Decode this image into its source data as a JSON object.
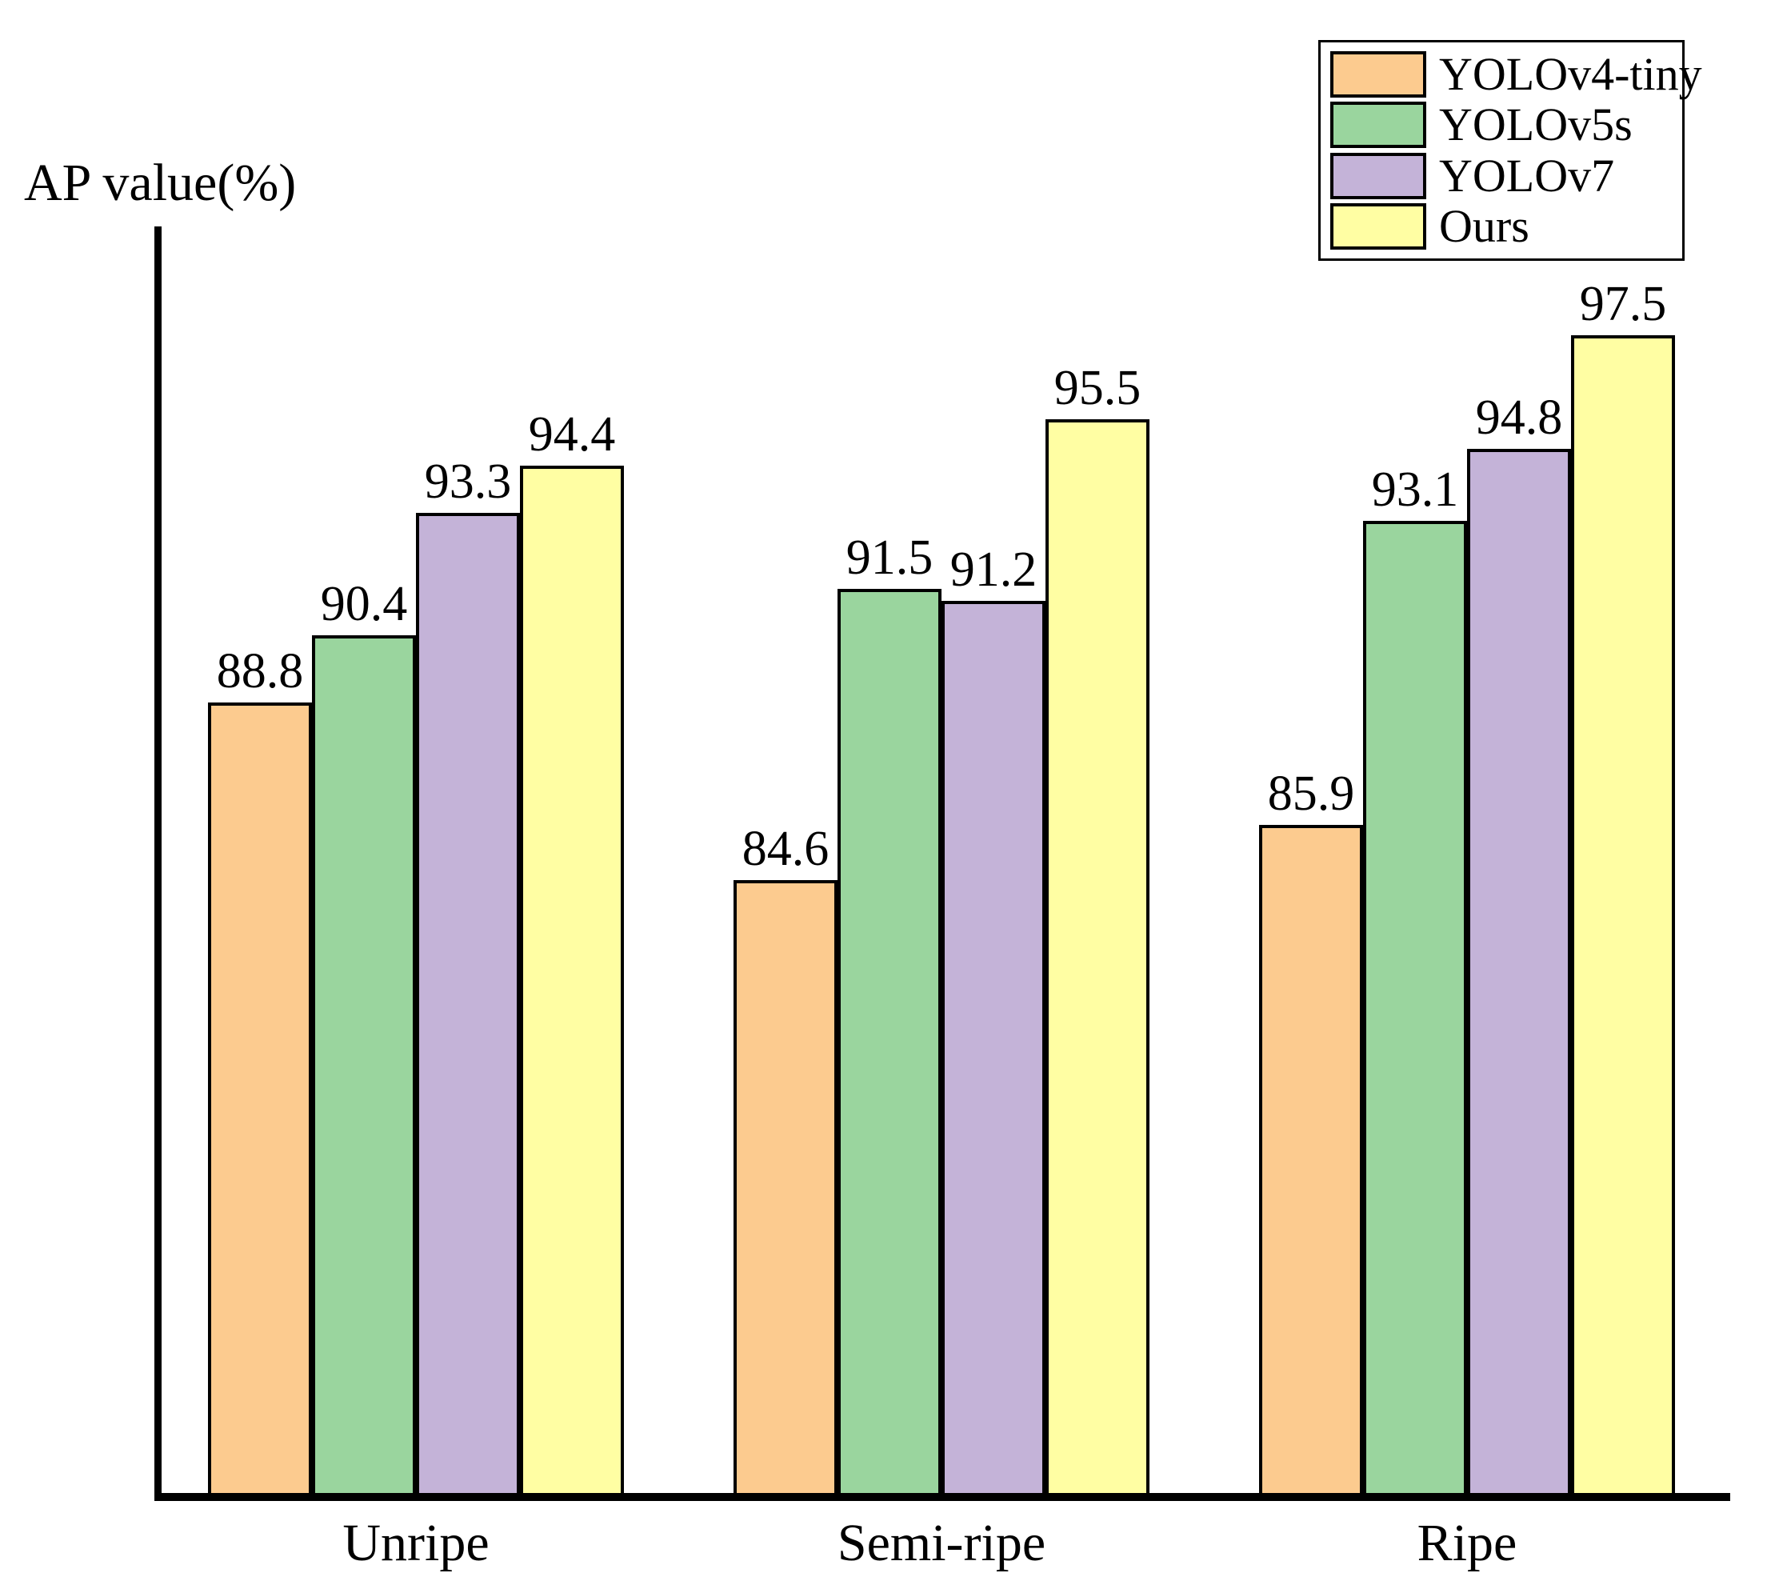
{
  "chart_data": {
    "type": "bar",
    "title": "",
    "ylabel": "AP value(%)",
    "xlabel": "",
    "ylim": [
      70,
      100
    ],
    "grid": false,
    "legend_position": "top-right",
    "value_labels_shown": true,
    "bar_outline_color": "#000000",
    "categories": [
      "Unripe",
      "Semi-ripe",
      "Ripe"
    ],
    "series": [
      {
        "name": "YOLOv4-tiny",
        "color": "#FCCB8F",
        "values": [
          88.8,
          84.6,
          85.9
        ]
      },
      {
        "name": "YOLOv5s",
        "color": "#9AD59E",
        "values": [
          90.4,
          91.5,
          93.1
        ]
      },
      {
        "name": "YOLOv7",
        "color": "#C4B3D8",
        "values": [
          93.3,
          91.2,
          94.8
        ]
      },
      {
        "name": "Ours",
        "color": "#FFFEA3",
        "values": [
          94.4,
          95.5,
          97.5
        ]
      }
    ]
  }
}
